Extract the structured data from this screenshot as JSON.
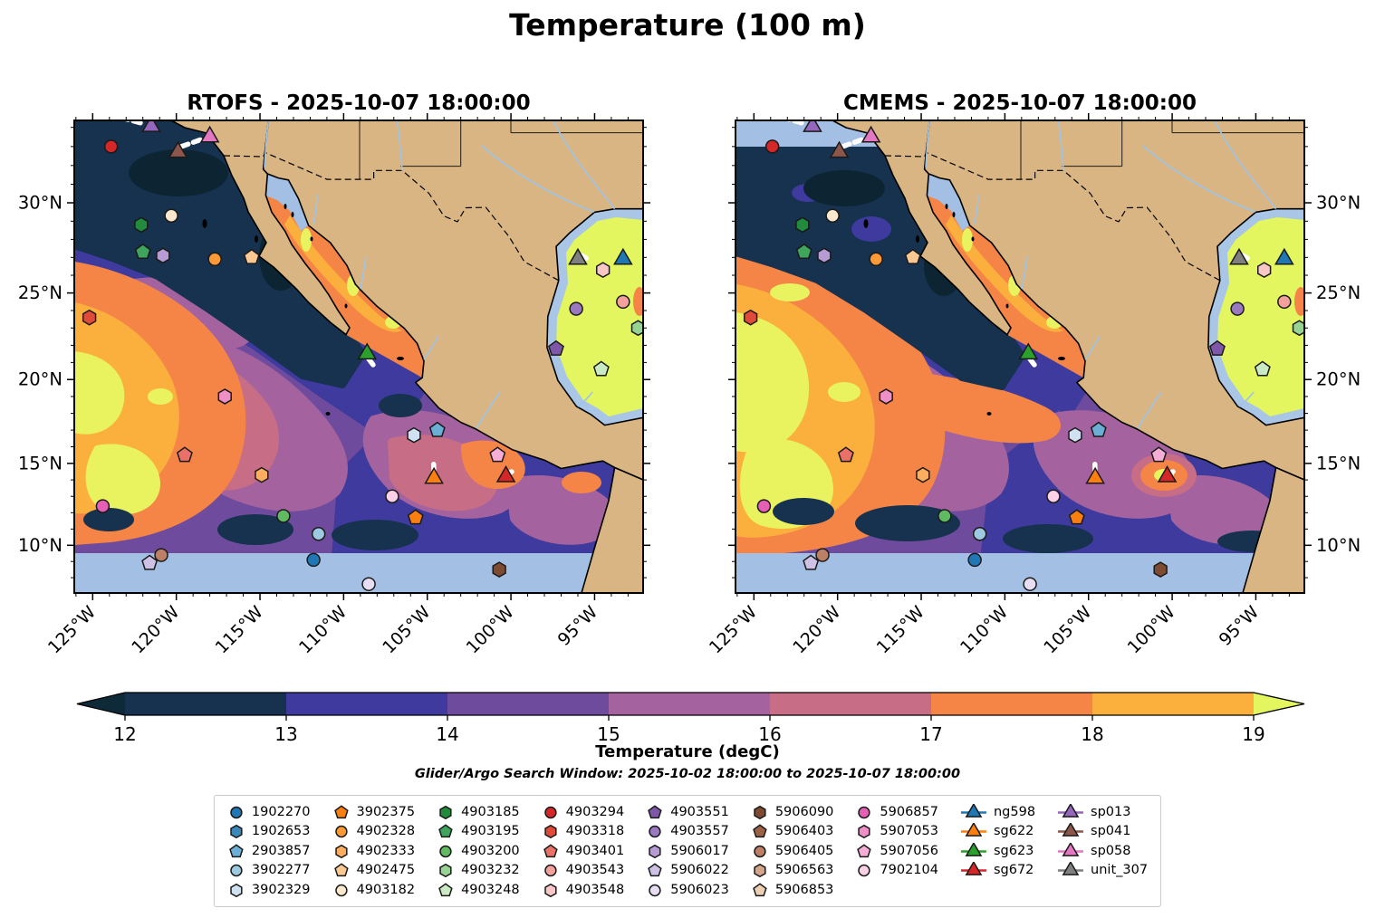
{
  "title": "Temperature (100 m)",
  "panels": [
    {
      "id": "rtofs",
      "title": "RTOFS - 2025-10-07 18:00:00"
    },
    {
      "id": "cmems",
      "title": "CMEMS - 2025-10-07 18:00:00"
    }
  ],
  "axes": {
    "lon_ticks": [
      {
        "deg": -125,
        "label": "125°W"
      },
      {
        "deg": -120,
        "label": "120°W"
      },
      {
        "deg": -115,
        "label": "115°W"
      },
      {
        "deg": -110,
        "label": "110°W"
      },
      {
        "deg": -105,
        "label": "105°W"
      },
      {
        "deg": -100,
        "label": "100°W"
      },
      {
        "deg": -95,
        "label": "95°W"
      }
    ],
    "lat_ticks": [
      {
        "deg": 30,
        "label": "30°N"
      },
      {
        "deg": 25,
        "label": "25°N"
      },
      {
        "deg": 20,
        "label": "20°N"
      },
      {
        "deg": 15,
        "label": "15°N"
      },
      {
        "deg": 10,
        "label": "10°N"
      }
    ],
    "lon_range": [
      -126.1,
      -92.1
    ],
    "lat_range": [
      34.36,
      7.05
    ]
  },
  "colorbar": {
    "label": "Temperature (degC)",
    "ticks": [
      "12",
      "13",
      "14",
      "15",
      "16",
      "17",
      "18",
      "19"
    ],
    "under": "#0e2a39",
    "segments": [
      "#16324f",
      "#3e3a9e",
      "#6e4b9c",
      "#a4639e",
      "#c76d86",
      "#f58447",
      "#fbaf3d"
    ],
    "over": "#e3f55f"
  },
  "subtitle": "Glider/Argo Search Window: 2025-10-02 18:00:00 to 2025-10-07 18:00:00",
  "map_colors": {
    "land": "#d8b583",
    "shallow": "#a3bfe3",
    "river": "#9ec4e8",
    "gulf_yellow": "#e3f55f",
    "track": "#ffffff"
  },
  "legend": {
    "argo_columns": [
      [
        {
          "id": "1902270",
          "shape": "circle",
          "color": "#2077b4"
        },
        {
          "id": "1902653",
          "shape": "hexagon",
          "color": "#3a87ba"
        },
        {
          "id": "2903857",
          "shape": "pentagon",
          "color": "#6baed6"
        },
        {
          "id": "3902277",
          "shape": "circle",
          "color": "#9ecae1"
        },
        {
          "id": "3902329",
          "shape": "hexagon",
          "color": "#cfe1f2"
        }
      ],
      [
        {
          "id": "3902375",
          "shape": "pentagon",
          "color": "#f87f10"
        },
        {
          "id": "4902328",
          "shape": "circle",
          "color": "#fd9a38"
        },
        {
          "id": "4902333",
          "shape": "hexagon",
          "color": "#fcae5e"
        },
        {
          "id": "4902475",
          "shape": "pentagon",
          "color": "#fdc992"
        },
        {
          "id": "4903182",
          "shape": "circle",
          "color": "#fde8cd"
        }
      ],
      [
        {
          "id": "4903185",
          "shape": "hexagon",
          "color": "#208b3c"
        },
        {
          "id": "4903195",
          "shape": "pentagon",
          "color": "#3fa45c"
        },
        {
          "id": "4903200",
          "shape": "circle",
          "color": "#5fba61"
        },
        {
          "id": "4903232",
          "shape": "hexagon",
          "color": "#97d494"
        },
        {
          "id": "4903248",
          "shape": "pentagon",
          "color": "#c9eac2"
        }
      ],
      [
        {
          "id": "4903294",
          "shape": "circle",
          "color": "#d62728"
        },
        {
          "id": "4903318",
          "shape": "hexagon",
          "color": "#df4b38"
        },
        {
          "id": "4903401",
          "shape": "pentagon",
          "color": "#e9716a"
        },
        {
          "id": "4903543",
          "shape": "circle",
          "color": "#f4a09c"
        },
        {
          "id": "4903548",
          "shape": "hexagon",
          "color": "#f9c8c6"
        }
      ],
      [
        {
          "id": "4903551",
          "shape": "pentagon",
          "color": "#7e57a8"
        },
        {
          "id": "4903557",
          "shape": "circle",
          "color": "#9b79c1"
        },
        {
          "id": "5906017",
          "shape": "hexagon",
          "color": "#b79bd4"
        },
        {
          "id": "5906022",
          "shape": "pentagon",
          "color": "#cfc0e5"
        },
        {
          "id": "5906023",
          "shape": "circle",
          "color": "#e8def4"
        }
      ],
      [
        {
          "id": "5906090",
          "shape": "hexagon",
          "color": "#7d4a32"
        },
        {
          "id": "5906403",
          "shape": "pentagon",
          "color": "#9c6246"
        },
        {
          "id": "5906405",
          "shape": "circle",
          "color": "#bb8066"
        },
        {
          "id": "5906563",
          "shape": "hexagon",
          "color": "#d3a68b"
        },
        {
          "id": "5906853",
          "shape": "pentagon",
          "color": "#edcfb3"
        }
      ],
      [
        {
          "id": "5906857",
          "shape": "circle",
          "color": "#e560b5"
        },
        {
          "id": "5907053",
          "shape": "hexagon",
          "color": "#ee8fc8"
        },
        {
          "id": "5907056",
          "shape": "pentagon",
          "color": "#f6aed6"
        },
        {
          "id": "7902104",
          "shape": "circle",
          "color": "#fcd0e7"
        }
      ]
    ],
    "glider_columns": [
      [
        {
          "id": "ng598",
          "shape": "triangle",
          "color": "#1f77b4"
        },
        {
          "id": "sg622",
          "shape": "triangle",
          "color": "#ff7f0e"
        },
        {
          "id": "sg623",
          "shape": "triangle",
          "color": "#2ca02c"
        },
        {
          "id": "sg672",
          "shape": "triangle",
          "color": "#d62728"
        }
      ],
      [
        {
          "id": "sp013",
          "shape": "triangle",
          "color": "#9467bd"
        },
        {
          "id": "sp041",
          "shape": "triangle",
          "color": "#8c564b"
        },
        {
          "id": "sp058",
          "shape": "triangle",
          "color": "#e377c2"
        },
        {
          "id": "unit_307",
          "shape": "triangle",
          "color": "#7f7f7f"
        }
      ]
    ]
  },
  "markers": [
    {
      "id": "4903294",
      "lon": -123.9,
      "lat": 33.0
    },
    {
      "id": "sp013",
      "lon": -121.5,
      "lat": 34.05
    },
    {
      "id": "sp041",
      "lon": -119.9,
      "lat": 32.7
    },
    {
      "id": "sp058",
      "lon": -118.0,
      "lat": 33.5
    },
    {
      "id": "4903182",
      "lon": -120.3,
      "lat": 29.3
    },
    {
      "id": "4903185",
      "lon": -122.1,
      "lat": 28.8
    },
    {
      "id": "4903195",
      "lon": -122.0,
      "lat": 27.3
    },
    {
      "id": "5906017",
      "lon": -120.8,
      "lat": 27.1
    },
    {
      "id": "4902328",
      "lon": -117.7,
      "lat": 26.9
    },
    {
      "id": "4902475",
      "lon": -115.5,
      "lat": 27.0
    },
    {
      "id": "4903318",
      "lon": -125.2,
      "lat": 23.6
    },
    {
      "id": "5907053",
      "lon": -117.1,
      "lat": 19.0
    },
    {
      "id": "4903401",
      "lon": -119.5,
      "lat": 15.5
    },
    {
      "id": "4902333",
      "lon": -114.9,
      "lat": 14.3
    },
    {
      "id": "5906857",
      "lon": -124.4,
      "lat": 12.4
    },
    {
      "id": "4903200",
      "lon": -113.6,
      "lat": 11.8
    },
    {
      "id": "3902277",
      "lon": -111.5,
      "lat": 10.7
    },
    {
      "id": "1902270",
      "lon": -111.8,
      "lat": 9.1
    },
    {
      "id": "5906405",
      "lon": -120.9,
      "lat": 9.4
    },
    {
      "id": "5906022",
      "lon": -121.6,
      "lat": 8.9
    },
    {
      "id": "7902104",
      "lon": -107.1,
      "lat": 13.0
    },
    {
      "id": "3902375",
      "lon": -105.7,
      "lat": 11.7
    },
    {
      "id": "5906023",
      "lon": -108.5,
      "lat": 7.6
    },
    {
      "id": "5906090",
      "lon": -100.7,
      "lat": 8.5
    },
    {
      "id": "3902329",
      "lon": -105.8,
      "lat": 16.7
    },
    {
      "id": "2903857",
      "lon": -104.4,
      "lat": 17.0
    },
    {
      "id": "5907056",
      "lon": -100.8,
      "lat": 15.5
    },
    {
      "id": "sg622",
      "lon": -104.6,
      "lat": 14.1
    },
    {
      "id": "sg672",
      "lon": -100.3,
      "lat": 14.2
    },
    {
      "id": "sg623",
      "lon": -108.6,
      "lat": 21.5
    },
    {
      "id": "unit_307",
      "lon": -96.0,
      "lat": 26.9
    },
    {
      "id": "ng598",
      "lon": -93.3,
      "lat": 26.9
    },
    {
      "id": "4903548",
      "lon": -94.5,
      "lat": 26.3
    },
    {
      "id": "4903557",
      "lon": -96.1,
      "lat": 24.1
    },
    {
      "id": "4903543",
      "lon": -93.3,
      "lat": 24.5
    },
    {
      "id": "4903551",
      "lon": -97.3,
      "lat": 21.8
    },
    {
      "id": "4903232",
      "lon": -92.4,
      "lat": 23.0
    },
    {
      "id": "4903248",
      "lon": -94.6,
      "lat": 20.6
    }
  ],
  "tracks": [
    {
      "from": [
        -123.3,
        34.5
      ],
      "to": [
        -122.0,
        34.2
      ]
    },
    {
      "from": [
        -119.7,
        33.0
      ],
      "to": [
        -118.35,
        33.42
      ]
    },
    {
      "from": [
        -108.5,
        21.2
      ],
      "to": [
        -108.15,
        20.75
      ]
    },
    {
      "from": [
        -104.62,
        14.95
      ],
      "to": [
        -104.6,
        14.4
      ]
    },
    {
      "from": [
        -100.15,
        14.4
      ],
      "to": [
        -99.95,
        14.5
      ]
    },
    {
      "from": [
        -95.75,
        27.1
      ],
      "to": [
        -95.5,
        26.95
      ]
    }
  ]
}
